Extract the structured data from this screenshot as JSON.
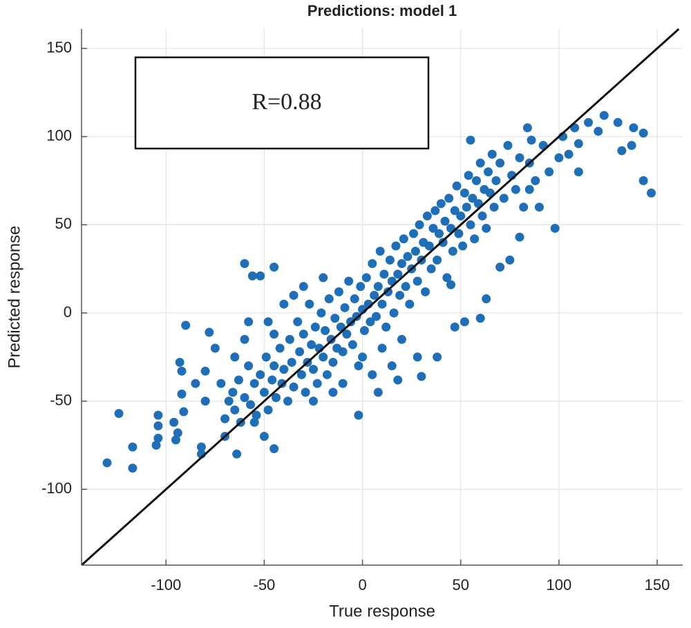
{
  "chart_data": {
    "type": "scatter",
    "title": "Predictions: model 1",
    "x_label": "True response",
    "y_label": "Predicted response",
    "annotation": "R=0.88",
    "color": "#1f6fb8",
    "xlim": [
      -143,
      163
    ],
    "ylim": [
      -143,
      161
    ],
    "xticks": [
      -100,
      -50,
      0,
      50,
      100,
      150
    ],
    "yticks": [
      -100,
      -50,
      0,
      50,
      100,
      150
    ],
    "grid": true,
    "x": [
      -130,
      -124,
      -117,
      -117,
      -105,
      -104,
      -104,
      -104,
      -96,
      -95,
      -94,
      -93,
      -92,
      -92,
      -91,
      -90,
      -82,
      -82,
      -80,
      -78,
      -60,
      -56,
      -52,
      -45,
      -45,
      98,
      110,
      110,
      120,
      130,
      132,
      138,
      143,
      143,
      147,
      137,
      123,
      115,
      100,
      90,
      84,
      86,
      55,
      80,
      18,
      -2,
      8,
      28,
      30,
      38,
      47,
      45,
      52,
      60,
      63,
      70,
      75,
      85,
      -70,
      -68,
      -66,
      -65,
      -63,
      -62,
      -60,
      -58,
      -57,
      -55,
      -54,
      -52,
      -50,
      -49,
      -48,
      -46,
      -45,
      -44,
      -42,
      -41,
      -40,
      -38,
      -37,
      -36,
      -35,
      -33,
      -32,
      -31,
      -30,
      -29,
      -28,
      -27,
      -26,
      -25,
      -24,
      -23,
      -22,
      -21,
      -20,
      -19,
      -18,
      -17,
      -16,
      -15,
      -14,
      -13,
      -12,
      -11,
      -10,
      -9,
      -8,
      -7,
      -6,
      -5,
      -4,
      -3,
      -2,
      -1,
      0,
      1,
      2,
      3,
      4,
      5,
      6,
      7,
      8,
      9,
      10,
      11,
      12,
      13,
      14,
      15,
      16,
      17,
      18,
      19,
      20,
      21,
      22,
      23,
      24,
      25,
      26,
      27,
      28,
      29,
      30,
      31,
      32,
      33,
      34,
      35,
      36,
      37,
      38,
      39,
      40,
      41,
      42,
      43,
      44,
      45,
      46,
      47,
      48,
      49,
      50,
      51,
      52,
      53,
      54,
      55,
      56,
      57,
      58,
      59,
      60,
      61,
      62,
      63,
      64,
      65,
      66,
      67,
      68,
      70,
      72,
      74,
      76,
      78,
      80,
      82,
      85,
      88,
      92,
      95,
      102,
      105,
      108,
      -75,
      -72,
      -70,
      -80,
      -85,
      -65,
      -60,
      -58,
      -48,
      -45,
      -40,
      -35,
      -30,
      -20,
      -25,
      -15,
      -10,
      0,
      5,
      10,
      15,
      20,
      -64,
      -50,
      -55
    ],
    "values": [
      -85,
      -57,
      -76,
      -88,
      -75,
      -58,
      -64,
      -71,
      -62,
      -72,
      -68,
      -28,
      -33,
      -46,
      -56,
      -7,
      -76,
      -80,
      -33,
      -11,
      28,
      21,
      21,
      26,
      -77,
      48,
      80,
      96,
      103,
      108,
      92,
      105,
      102,
      75,
      68,
      95,
      112,
      108,
      88,
      60,
      105,
      98,
      98,
      43,
      -38,
      -58,
      -45,
      -25,
      -36,
      -25,
      -8,
      16,
      -5,
      -3,
      8,
      26,
      30,
      70,
      -60,
      -50,
      -45,
      -55,
      -38,
      -62,
      -48,
      -30,
      -52,
      -40,
      -58,
      -35,
      -45,
      -25,
      -55,
      -38,
      -30,
      -48,
      -20,
      -40,
      -32,
      -50,
      -15,
      -28,
      -42,
      -5,
      -22,
      -35,
      -12,
      -45,
      -28,
      5,
      -18,
      -32,
      -8,
      -40,
      -20,
      0,
      -25,
      -10,
      -35,
      8,
      -15,
      -28,
      -3,
      -20,
      12,
      -8,
      -22,
      3,
      -12,
      18,
      -5,
      -18,
      8,
      -2,
      -30,
      15,
      2,
      -10,
      20,
      5,
      -5,
      28,
      10,
      -2,
      15,
      35,
      5,
      22,
      -8,
      12,
      30,
      18,
      0,
      38,
      22,
      10,
      28,
      42,
      15,
      32,
      5,
      25,
      45,
      35,
      18,
      50,
      30,
      40,
      12,
      55,
      38,
      25,
      48,
      58,
      30,
      45,
      62,
      40,
      52,
      20,
      65,
      48,
      35,
      58,
      72,
      45,
      55,
      38,
      68,
      60,
      78,
      50,
      65,
      42,
      75,
      62,
      85,
      55,
      70,
      48,
      80,
      68,
      90,
      60,
      75,
      85,
      65,
      95,
      78,
      70,
      88,
      60,
      85,
      75,
      95,
      80,
      100,
      90,
      105,
      -20,
      -40,
      -70,
      -50,
      -40,
      -25,
      -15,
      -5,
      -5,
      -12,
      5,
      10,
      15,
      20,
      -50,
      -45,
      -40,
      -25,
      -35,
      -20,
      -30,
      -15,
      -80,
      -70,
      -62
    ]
  }
}
